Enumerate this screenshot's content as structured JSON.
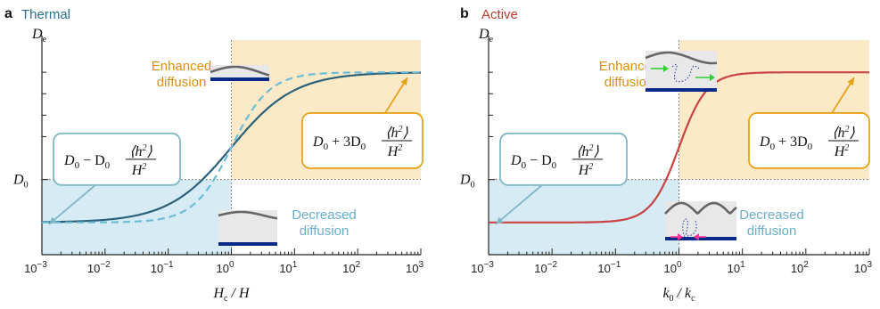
{
  "colors": {
    "thermal_title": "#2a6f8f",
    "active_title": "#c0392b",
    "thermal_curve": "#2a6178",
    "thermal_dashed": "#6cbcd8",
    "active_curve": "#c94343",
    "enhanced_fill": "#fbe9c8",
    "decreased_fill": "#d6ebf3",
    "enhanced_text": "#d9900c",
    "decreased_text": "#6aaec9",
    "enhanced_box": "#e8a21a",
    "decreased_box": "#7fb7c8",
    "membrane_base": "#0a2a8a",
    "arrow_green": "#33cc33",
    "arrow_pink": "#ff3399"
  },
  "chart_data": [
    {
      "type": "line",
      "panel_letter": "a",
      "title": "Thermal",
      "xlabel": "Hc / H",
      "xlabel_main": "H",
      "xlabel_sub": "c",
      "xlabel_rest": " / H",
      "ylabel_main": "D",
      "ylabel_sub": "e",
      "x_scale": "log",
      "xlim": [
        0.001,
        1000
      ],
      "x_ticks": [
        0.001,
        0.01,
        0.1,
        1,
        10,
        100,
        1000
      ],
      "x_tick_labels": [
        {
          "base": "10",
          "exp": "−3"
        },
        {
          "base": "10",
          "exp": "−2"
        },
        {
          "base": "10",
          "exp": "−1"
        },
        {
          "base": "10",
          "exp": "0"
        },
        {
          "base": "10",
          "exp": "1"
        },
        {
          "base": "10",
          "exp": "2"
        },
        {
          "base": "10",
          "exp": "3"
        }
      ],
      "y_tick_label_main": "D",
      "y_tick_label_sub": "0",
      "y_levels": {
        "low": 0.6,
        "d0": 1.0,
        "high": 2.0
      },
      "ylim": [
        0.3,
        2.3
      ],
      "series": [
        {
          "style": "solid",
          "x_mid": 1,
          "width_decades": 0.5
        },
        {
          "style": "dashed",
          "x_mid": 1,
          "width_decades": 0.3
        }
      ],
      "annotations": {
        "enhanced_line1": "Enhanced",
        "enhanced_line2": "diffusion",
        "decreased_line1": "Decreased",
        "decreased_line2": "diffusion",
        "formula_high_prefix": "D",
        "formula_high_prefix_sub": "0",
        "formula_high_op": "+ 3D",
        "formula_high_op_sub": "0",
        "formula_low_prefix": "D",
        "formula_low_prefix_sub": "0",
        "formula_low_op": "− D",
        "formula_low_op_sub": "0",
        "fraction_num": "⟨h",
        "fraction_num_sup": "2",
        "fraction_num_end": "⟩",
        "fraction_den": "H",
        "fraction_den_sup": "2"
      }
    },
    {
      "type": "line",
      "panel_letter": "b",
      "title": "Active",
      "xlabel": "k0 / kc",
      "xlabel_main": "k",
      "xlabel_sub": "0",
      "xlabel_rest": " / k",
      "xlabel_rest_sub": "c",
      "ylabel_main": "D",
      "ylabel_sub": "e",
      "x_scale": "log",
      "xlim": [
        0.001,
        1000
      ],
      "x_ticks": [
        0.001,
        0.01,
        0.1,
        1,
        10,
        100,
        1000
      ],
      "x_tick_labels": [
        {
          "base": "10",
          "exp": "−3"
        },
        {
          "base": "10",
          "exp": "−2"
        },
        {
          "base": "10",
          "exp": "−1"
        },
        {
          "base": "10",
          "exp": "0"
        },
        {
          "base": "10",
          "exp": "1"
        },
        {
          "base": "10",
          "exp": "2"
        },
        {
          "base": "10",
          "exp": "3"
        }
      ],
      "y_tick_label_main": "D",
      "y_tick_label_sub": "0",
      "y_levels": {
        "low": 0.6,
        "d0": 1.0,
        "high": 2.0
      },
      "ylim": [
        0.3,
        2.3
      ],
      "series": [
        {
          "style": "solid",
          "x_mid": 1,
          "width_decades": 0.22
        }
      ],
      "annotations": {
        "enhanced_line1": "Enhanced",
        "enhanced_line2": "diffusion",
        "decreased_line1": "Decreased",
        "decreased_line2": "diffusion",
        "formula_high_prefix": "D",
        "formula_high_prefix_sub": "0",
        "formula_high_op": "+ 3D",
        "formula_high_op_sub": "0",
        "formula_low_prefix": "D",
        "formula_low_prefix_sub": "0",
        "formula_low_op": "− D",
        "formula_low_op_sub": "0",
        "fraction_num": "⟨h",
        "fraction_num_sup": "2",
        "fraction_num_end": "⟩",
        "fraction_den": "H",
        "fraction_den_sup": "2"
      }
    }
  ]
}
